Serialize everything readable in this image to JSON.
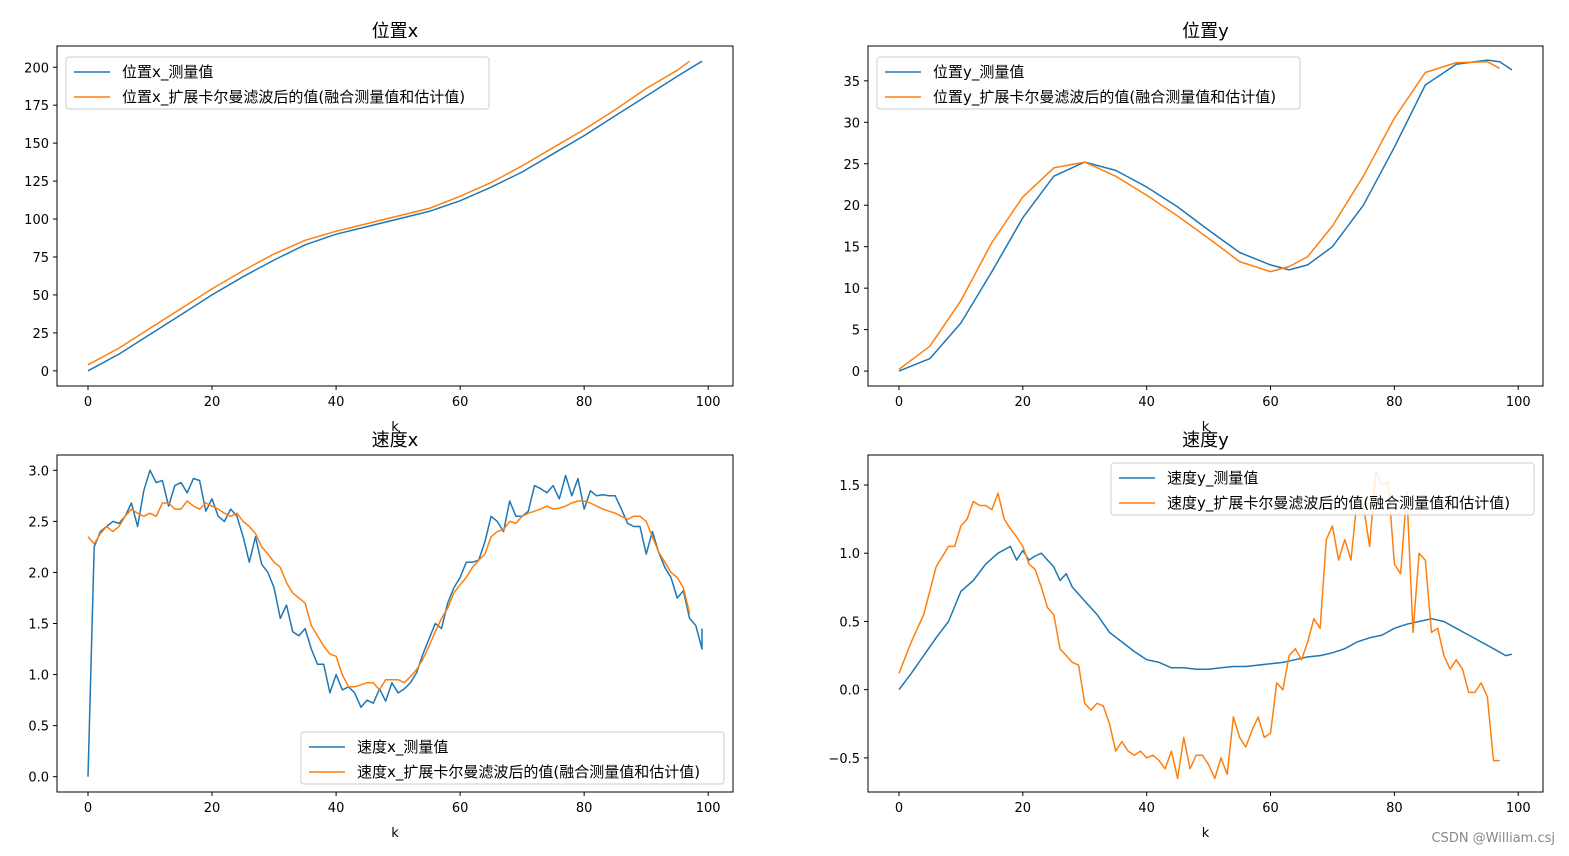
{
  "watermark": "CSDN @William.csj",
  "colors": {
    "measured": "#1f77b4",
    "filtered": "#ff7f0e"
  },
  "chart_data": [
    {
      "type": "line",
      "title": "位置x",
      "xlabel": "k",
      "ylabel": "",
      "xlim": [
        -5,
        104
      ],
      "ylim": [
        -10,
        214
      ],
      "xticks": [
        0,
        20,
        40,
        60,
        80,
        100
      ],
      "yticks": [
        0,
        25,
        50,
        75,
        100,
        125,
        150,
        175,
        200
      ],
      "legend_position": "upper-left",
      "series": [
        {
          "name": "位置x_测量值",
          "color": "#1f77b4",
          "x": [
            0,
            5,
            10,
            15,
            20,
            25,
            30,
            35,
            40,
            45,
            50,
            55,
            60,
            65,
            70,
            75,
            80,
            85,
            90,
            95,
            99
          ],
          "y": [
            0,
            11,
            24,
            37,
            50,
            62,
            73,
            83,
            90,
            95,
            100,
            105,
            112,
            121,
            131,
            143,
            155,
            168,
            181,
            194,
            204
          ]
        },
        {
          "name": "位置x_扩展卡尔曼滤波后的值(融合测量值和估计值)",
          "color": "#ff7f0e",
          "x": [
            0,
            5,
            10,
            15,
            20,
            25,
            30,
            35,
            40,
            45,
            50,
            55,
            60,
            65,
            70,
            75,
            80,
            85,
            90,
            95,
            97
          ],
          "y": [
            4,
            15,
            28,
            41,
            54,
            66,
            77,
            86,
            92,
            97,
            102,
            107,
            115,
            124,
            135,
            147,
            159,
            172,
            186,
            198,
            204
          ]
        }
      ]
    },
    {
      "type": "line",
      "title": "位置y",
      "xlabel": "k",
      "ylabel": "",
      "xlim": [
        -5,
        104
      ],
      "ylim": [
        -1.8,
        39.2
      ],
      "xticks": [
        0,
        20,
        40,
        60,
        80,
        100
      ],
      "yticks": [
        0,
        5,
        10,
        15,
        20,
        25,
        30,
        35
      ],
      "legend_position": "upper-left",
      "series": [
        {
          "name": "位置y_测量值",
          "color": "#1f77b4",
          "x": [
            0,
            5,
            10,
            15,
            20,
            25,
            30,
            35,
            40,
            45,
            50,
            55,
            60,
            63,
            66,
            70,
            75,
            80,
            85,
            90,
            95,
            97,
            99
          ],
          "y": [
            0,
            1.5,
            5.8,
            12,
            18.5,
            23.5,
            25.2,
            24.2,
            22.2,
            19.8,
            17,
            14.3,
            12.8,
            12.2,
            12.8,
            15,
            20,
            27,
            34.5,
            37,
            37.5,
            37.3,
            36.3
          ]
        },
        {
          "name": "位置y_扩展卡尔曼滤波后的值(融合测量值和估计值)",
          "color": "#ff7f0e",
          "x": [
            0,
            5,
            10,
            15,
            20,
            25,
            30,
            35,
            40,
            45,
            50,
            55,
            60,
            63,
            66,
            70,
            75,
            80,
            85,
            90,
            95,
            97
          ],
          "y": [
            0.2,
            3,
            8.5,
            15.5,
            21,
            24.5,
            25.2,
            23.5,
            21.2,
            18.7,
            16,
            13.2,
            12,
            12.6,
            13.8,
            17.5,
            23.5,
            30.5,
            36,
            37.2,
            37.3,
            36.5
          ]
        }
      ]
    },
    {
      "type": "line",
      "title": "速度x",
      "xlabel": "k",
      "ylabel": "",
      "xlim": [
        -5,
        104
      ],
      "ylim": [
        -0.15,
        3.15
      ],
      "xticks": [
        0,
        20,
        40,
        60,
        80,
        100
      ],
      "yticks": [
        0.0,
        0.5,
        1.0,
        1.5,
        2.0,
        2.5,
        3.0
      ],
      "legend_position": "lower-right",
      "series": [
        {
          "name": "速度x_测量值",
          "color": "#1f77b4",
          "x": [
            0,
            1,
            2,
            3,
            4,
            5,
            6,
            7,
            8,
            9,
            10,
            11,
            12,
            13,
            14,
            15,
            16,
            17,
            18,
            19,
            20,
            21,
            22,
            23,
            24,
            25,
            26,
            27,
            28,
            29,
            30,
            31,
            32,
            33,
            34,
            35,
            36,
            37,
            38,
            39,
            40,
            41,
            42,
            43,
            44,
            45,
            46,
            47,
            48,
            49,
            50,
            51,
            52,
            53,
            54,
            55,
            56,
            57,
            58,
            59,
            60,
            61,
            62,
            63,
            64,
            65,
            66,
            67,
            68,
            69,
            70,
            71,
            72,
            73,
            74,
            75,
            76,
            77,
            78,
            79,
            80,
            81,
            82,
            83,
            84,
            85,
            86,
            87,
            88,
            89,
            90,
            91,
            92,
            93,
            94,
            95,
            96,
            97,
            98,
            99
          ],
          "y": [
            0.0,
            2.25,
            2.4,
            2.45,
            2.5,
            2.48,
            2.55,
            2.68,
            2.45,
            2.8,
            3.0,
            2.88,
            2.9,
            2.65,
            2.85,
            2.88,
            2.78,
            2.92,
            2.9,
            2.6,
            2.72,
            2.55,
            2.5,
            2.62,
            2.55,
            2.35,
            2.1,
            2.35,
            2.08,
            2.0,
            1.85,
            1.55,
            1.68,
            1.42,
            1.38,
            1.45,
            1.25,
            1.1,
            1.1,
            0.82,
            1.0,
            0.85,
            0.88,
            0.82,
            0.68,
            0.75,
            0.72,
            0.86,
            0.74,
            0.92,
            0.82,
            0.86,
            0.92,
            1.02,
            1.2,
            1.35,
            1.5,
            1.45,
            1.7,
            1.85,
            1.95,
            2.1,
            2.1,
            2.12,
            2.3,
            2.55,
            2.5,
            2.4,
            2.7,
            2.55,
            2.55,
            2.6,
            2.85,
            2.82,
            2.78,
            2.85,
            2.72,
            2.95,
            2.75,
            2.92,
            2.62,
            2.8,
            2.75,
            2.76,
            2.75,
            2.75,
            2.62,
            2.48,
            2.45,
            2.45,
            2.18,
            2.4,
            2.2,
            2.05,
            1.95,
            1.75,
            1.82,
            1.55,
            1.48,
            1.25
          ],
          "x_tail": [
            99
          ],
          "y_tail": [
            1.45
          ]
        },
        {
          "name": "速度x_扩展卡尔曼滤波后的值(融合测量值和估计值)",
          "color": "#ff7f0e",
          "x": [
            0,
            1,
            2,
            3,
            4,
            5,
            6,
            7,
            8,
            9,
            10,
            11,
            12,
            13,
            14,
            15,
            16,
            17,
            18,
            19,
            20,
            21,
            22,
            23,
            24,
            25,
            26,
            27,
            28,
            29,
            30,
            31,
            32,
            33,
            34,
            35,
            36,
            37,
            38,
            39,
            40,
            41,
            42,
            43,
            44,
            45,
            46,
            47,
            48,
            49,
            50,
            51,
            52,
            53,
            54,
            55,
            56,
            57,
            58,
            59,
            60,
            61,
            62,
            63,
            64,
            65,
            66,
            67,
            68,
            69,
            70,
            71,
            72,
            73,
            74,
            75,
            76,
            77,
            78,
            79,
            80,
            81,
            82,
            83,
            84,
            85,
            86,
            87,
            88,
            89,
            90,
            91,
            92,
            93,
            94,
            95,
            96,
            97
          ],
          "y": [
            2.35,
            2.28,
            2.38,
            2.45,
            2.4,
            2.45,
            2.55,
            2.62,
            2.58,
            2.55,
            2.58,
            2.55,
            2.68,
            2.68,
            2.62,
            2.62,
            2.7,
            2.65,
            2.62,
            2.68,
            2.65,
            2.62,
            2.58,
            2.55,
            2.58,
            2.5,
            2.45,
            2.38,
            2.25,
            2.18,
            2.1,
            2.05,
            1.9,
            1.8,
            1.75,
            1.7,
            1.48,
            1.38,
            1.28,
            1.2,
            1.18,
            1.0,
            0.88,
            0.88,
            0.9,
            0.92,
            0.92,
            0.85,
            0.95,
            0.95,
            0.95,
            0.92,
            0.98,
            1.05,
            1.15,
            1.28,
            1.42,
            1.55,
            1.65,
            1.8,
            1.88,
            1.95,
            2.05,
            2.12,
            2.18,
            2.35,
            2.4,
            2.42,
            2.5,
            2.48,
            2.55,
            2.58,
            2.6,
            2.62,
            2.65,
            2.62,
            2.63,
            2.65,
            2.68,
            2.7,
            2.7,
            2.68,
            2.65,
            2.62,
            2.6,
            2.58,
            2.55,
            2.52,
            2.55,
            2.55,
            2.5,
            2.35,
            2.2,
            2.1,
            2.0,
            1.95,
            1.85,
            1.6
          ]
        }
      ]
    },
    {
      "type": "line",
      "title": "速度y",
      "xlabel": "k",
      "ylabel": "",
      "xlim": [
        -5,
        104
      ],
      "ylim": [
        -0.75,
        1.72
      ],
      "xticks": [
        0,
        20,
        40,
        60,
        80,
        100
      ],
      "yticks": [
        -0.5,
        0.0,
        0.5,
        1.0,
        1.5
      ],
      "ytick_labels": [
        "−0.5",
        "0.0",
        "0.5",
        "1.0",
        "1.5"
      ],
      "legend_position": "upper-right",
      "series": [
        {
          "name": "速度y_测量值",
          "color": "#1f77b4",
          "x": [
            0,
            2,
            4,
            6,
            8,
            10,
            12,
            14,
            16,
            18,
            19,
            20,
            21,
            22,
            23,
            24,
            25,
            26,
            27,
            28,
            30,
            32,
            34,
            36,
            38,
            40,
            42,
            44,
            46,
            48,
            50,
            52,
            54,
            56,
            58,
            60,
            62,
            64,
            66,
            68,
            70,
            72,
            74,
            76,
            78,
            80,
            82,
            84,
            86,
            88,
            90,
            92,
            94,
            96,
            98,
            99
          ],
          "y": [
            0,
            0.12,
            0.25,
            0.38,
            0.5,
            0.72,
            0.8,
            0.92,
            1.0,
            1.05,
            0.95,
            1.02,
            0.95,
            0.98,
            1.0,
            0.95,
            0.9,
            0.8,
            0.85,
            0.75,
            0.65,
            0.55,
            0.42,
            0.35,
            0.28,
            0.22,
            0.2,
            0.16,
            0.16,
            0.15,
            0.15,
            0.16,
            0.17,
            0.17,
            0.18,
            0.19,
            0.2,
            0.22,
            0.24,
            0.25,
            0.27,
            0.3,
            0.35,
            0.38,
            0.4,
            0.45,
            0.48,
            0.5,
            0.52,
            0.5,
            0.45,
            0.4,
            0.35,
            0.3,
            0.25,
            0.26
          ]
        },
        {
          "name": "速度y_扩展卡尔曼滤波后的值(融合测量值和估计值)",
          "color": "#ff7f0e",
          "x": [
            0,
            2,
            4,
            6,
            8,
            9,
            10,
            11,
            12,
            13,
            14,
            15,
            16,
            17,
            18,
            19,
            20,
            21,
            22,
            23,
            24,
            25,
            26,
            27,
            28,
            29,
            30,
            31,
            32,
            33,
            34,
            35,
            36,
            37,
            38,
            39,
            40,
            41,
            42,
            43,
            44,
            45,
            46,
            47,
            48,
            49,
            50,
            51,
            52,
            53,
            54,
            55,
            56,
            57,
            58,
            59,
            60,
            61,
            62,
            63,
            64,
            65,
            66,
            67,
            68,
            69,
            70,
            71,
            72,
            73,
            74,
            75,
            76,
            77,
            78,
            79,
            80,
            81,
            82,
            83,
            84,
            85,
            86,
            87,
            88,
            89,
            90,
            91,
            92,
            93,
            94,
            95,
            96,
            97
          ],
          "y": [
            0.12,
            0.35,
            0.55,
            0.9,
            1.05,
            1.05,
            1.2,
            1.25,
            1.38,
            1.35,
            1.35,
            1.32,
            1.44,
            1.25,
            1.18,
            1.12,
            1.05,
            0.92,
            0.88,
            0.75,
            0.6,
            0.55,
            0.3,
            0.25,
            0.2,
            0.18,
            -0.1,
            -0.15,
            -0.1,
            -0.12,
            -0.25,
            -0.45,
            -0.38,
            -0.45,
            -0.48,
            -0.45,
            -0.5,
            -0.48,
            -0.52,
            -0.58,
            -0.45,
            -0.65,
            -0.35,
            -0.58,
            -0.48,
            -0.48,
            -0.55,
            -0.65,
            -0.5,
            -0.62,
            -0.2,
            -0.35,
            -0.42,
            -0.3,
            -0.2,
            -0.35,
            -0.32,
            0.05,
            0.0,
            0.25,
            0.3,
            0.22,
            0.35,
            0.52,
            0.45,
            1.1,
            1.2,
            0.95,
            1.1,
            0.95,
            1.4,
            1.35,
            1.05,
            1.6,
            1.5,
            1.52,
            0.92,
            0.85,
            1.45,
            0.42,
            1.0,
            0.95,
            0.42,
            0.45,
            0.25,
            0.15,
            0.22,
            0.15,
            -0.02,
            -0.02,
            0.05,
            -0.05,
            -0.52,
            -0.52
          ]
        }
      ]
    }
  ]
}
